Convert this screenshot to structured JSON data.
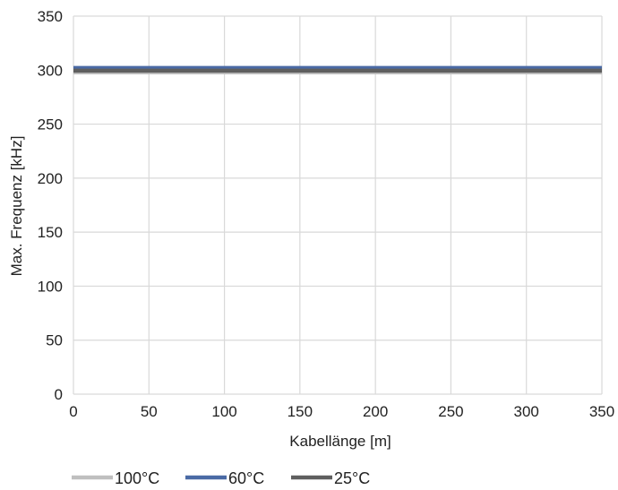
{
  "chart_data": {
    "type": "line",
    "title": "",
    "xlabel": "Kabellänge [m]",
    "ylabel": "Max. Frequenz [kHz]",
    "xlim": [
      0,
      350
    ],
    "ylim": [
      0,
      350
    ],
    "x_ticks": [
      0,
      50,
      100,
      150,
      200,
      250,
      300,
      350
    ],
    "y_ticks": [
      0,
      50,
      100,
      150,
      200,
      250,
      300,
      350
    ],
    "grid": true,
    "legend_position": "bottom",
    "x": [
      0,
      350
    ],
    "series": [
      {
        "name": "100°C",
        "color": "#bfbfbf",
        "values": [
          298,
          298
        ]
      },
      {
        "name": "60°C",
        "color": "#4a6aa5",
        "values": [
          302,
          302
        ]
      },
      {
        "name": "25°C",
        "color": "#5f5f5f",
        "values": [
          299.5,
          299.5
        ]
      }
    ]
  }
}
